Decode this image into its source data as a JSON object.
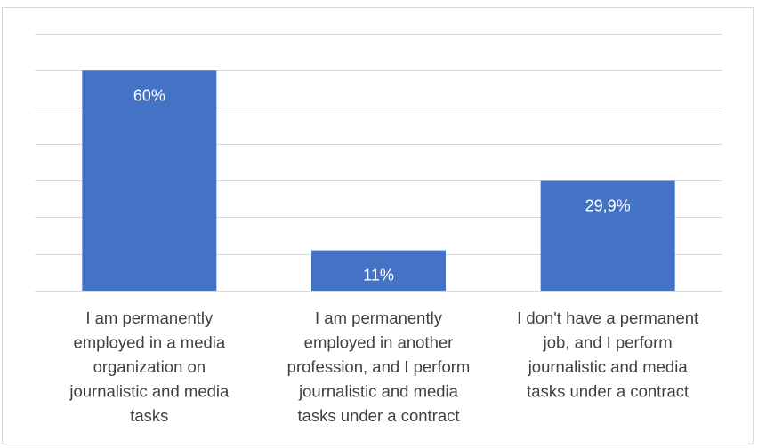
{
  "chart_data": {
    "type": "bar",
    "title": "",
    "xlabel": "",
    "ylabel": "",
    "categories": [
      "I am permanently employed in a media organization on journalistic and media tasks",
      "I am permanently employed in another profession, and I perform journalistic and media tasks under a contract",
      "I don't have a permanent job, and I perform journalistic and media tasks under a contract"
    ],
    "category_lines": [
      [
        "I am permanently",
        "employed in a media",
        "organization on",
        "journalistic and media",
        "tasks"
      ],
      [
        "I am permanently",
        "employed in another",
        "profession, and I perform",
        "journalistic and media",
        "tasks under a contract"
      ],
      [
        "I don't have a permanent",
        "job, and I perform",
        "journalistic and media",
        "tasks under a contract"
      ]
    ],
    "values": [
      60,
      11,
      29.9
    ],
    "data_labels": [
      "60%",
      "11%",
      "29,9%"
    ],
    "ylim": [
      0,
      70
    ],
    "gridlines": true,
    "legend": "none",
    "bar_color": "#4472C4",
    "gridline_color": "#d9d9d9",
    "label_color": "#404040"
  }
}
